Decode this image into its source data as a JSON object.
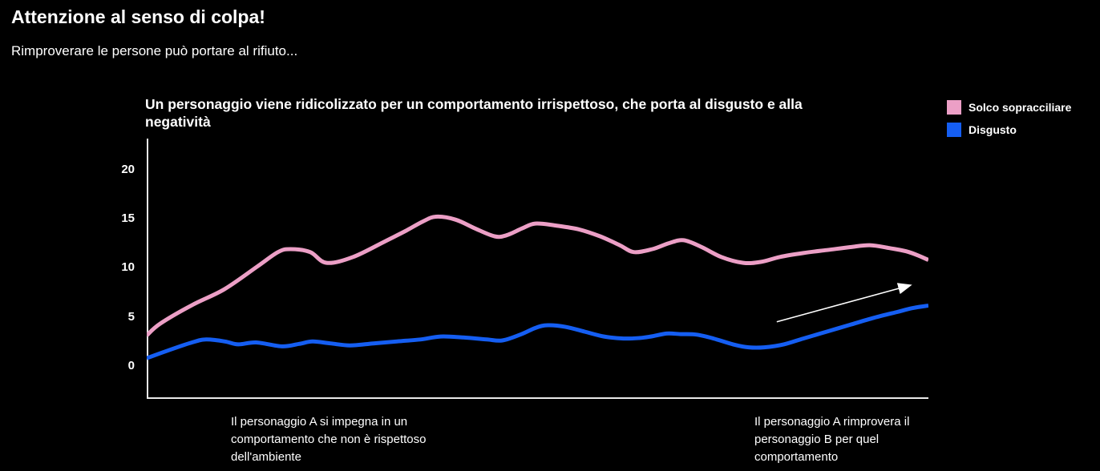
{
  "page": {
    "title": "Attenzione al senso di colpa!",
    "subtitle": "Rimproverare le persone può portare al rifiuto..."
  },
  "chart_data": {
    "type": "line",
    "title": "Un personaggio viene ridicolizzato per un comportamento irrispettoso, che porta al disgusto e alla\nnegatività",
    "xlabel": "",
    "ylabel": "",
    "background": "#000000",
    "text_color": "#ffffff",
    "axis_color": "#e9e9e9",
    "grid": false,
    "legend_position": "top-right",
    "x_range_percent": [
      0,
      100
    ],
    "y_range": [
      -3.35,
      23.15
    ],
    "y_ticks": [
      20,
      15,
      10,
      5,
      0
    ],
    "series": [
      {
        "name": "Solco sopracciliare",
        "color": "#ec9fc6",
        "points": [
          [
            0,
            3.1
          ],
          [
            1.7,
            4.3
          ],
          [
            5.8,
            6.2
          ],
          [
            9.9,
            7.8
          ],
          [
            14.1,
            10.1
          ],
          [
            16.8,
            11.6
          ],
          [
            18.4,
            11.9
          ],
          [
            20.9,
            11.6
          ],
          [
            23,
            10.5
          ],
          [
            26.4,
            11.1
          ],
          [
            30.5,
            12.7
          ],
          [
            33,
            13.7
          ],
          [
            35.3,
            14.7
          ],
          [
            37,
            15.2
          ],
          [
            39.5,
            14.9
          ],
          [
            42,
            14.0
          ],
          [
            44.5,
            13.2
          ],
          [
            46,
            13.3
          ],
          [
            48,
            14.0
          ],
          [
            49.7,
            14.5
          ],
          [
            52.3,
            14.3
          ],
          [
            55.3,
            13.9
          ],
          [
            58,
            13.2
          ],
          [
            60.5,
            12.3
          ],
          [
            62.3,
            11.6
          ],
          [
            64.7,
            11.9
          ],
          [
            66.8,
            12.5
          ],
          [
            68.7,
            12.8
          ],
          [
            71,
            12.1
          ],
          [
            73.5,
            11.1
          ],
          [
            76.3,
            10.5
          ],
          [
            78.6,
            10.6
          ],
          [
            81,
            11.1
          ],
          [
            84,
            11.5
          ],
          [
            87,
            11.8
          ],
          [
            90,
            12.1
          ],
          [
            92.5,
            12.3
          ],
          [
            95,
            12.0
          ],
          [
            97.5,
            11.6
          ],
          [
            100,
            10.8
          ]
        ]
      },
      {
        "name": "Disgusto",
        "color": "#155ef2",
        "points": [
          [
            0,
            0.8
          ],
          [
            2.8,
            1.6
          ],
          [
            5.8,
            2.4
          ],
          [
            7.6,
            2.7
          ],
          [
            10,
            2.5
          ],
          [
            11.7,
            2.2
          ],
          [
            14,
            2.4
          ],
          [
            17.3,
            2.0
          ],
          [
            19.5,
            2.25
          ],
          [
            21.2,
            2.5
          ],
          [
            23.5,
            2.3
          ],
          [
            26,
            2.1
          ],
          [
            29,
            2.3
          ],
          [
            32,
            2.5
          ],
          [
            35,
            2.7
          ],
          [
            37.6,
            3.0
          ],
          [
            40.5,
            2.9
          ],
          [
            43.5,
            2.7
          ],
          [
            45.5,
            2.6
          ],
          [
            47.8,
            3.2
          ],
          [
            49.8,
            3.9
          ],
          [
            51.3,
            4.15
          ],
          [
            53.5,
            4.0
          ],
          [
            56,
            3.5
          ],
          [
            58.5,
            3.0
          ],
          [
            61,
            2.8
          ],
          [
            63,
            2.85
          ],
          [
            64.5,
            3.0
          ],
          [
            66.5,
            3.3
          ],
          [
            68.3,
            3.25
          ],
          [
            70.3,
            3.2
          ],
          [
            72.5,
            2.8
          ],
          [
            75,
            2.2
          ],
          [
            77,
            1.9
          ],
          [
            79,
            1.9
          ],
          [
            81.5,
            2.2
          ],
          [
            84,
            2.8
          ],
          [
            87,
            3.5
          ],
          [
            90,
            4.2
          ],
          [
            93,
            4.9
          ],
          [
            96,
            5.5
          ],
          [
            98,
            5.9
          ],
          [
            100,
            6.15
          ]
        ]
      }
    ],
    "annotations": {
      "trend_arrow": {
        "from": [
          80.6,
          4.5
        ],
        "to": [
          97.6,
          8.2
        ],
        "color": "#ffffff"
      },
      "x_axis_notes": [
        {
          "text": "Il personaggio A si impegna in un\ncomportamento che non è rispettoso\ndell'ambiente",
          "x_percent": 10.8
        },
        {
          "text": "Il personaggio A rimprovera il\npersonaggio B per quel\ncomportamento",
          "x_percent": 77.7
        }
      ]
    }
  }
}
